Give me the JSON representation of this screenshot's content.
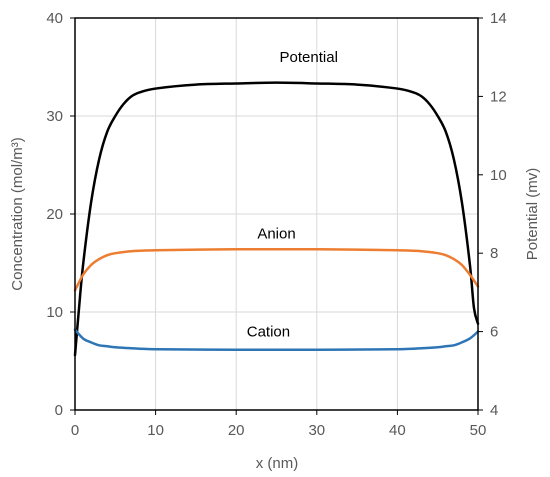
{
  "chart_data": {
    "type": "line",
    "x_axis": {
      "label": "x (nm)",
      "range": [
        0,
        50
      ],
      "ticks": [
        0,
        10,
        20,
        30,
        40,
        50
      ]
    },
    "y_axis_left": {
      "label": "Concentration (mol/m³)",
      "range": [
        0,
        40
      ],
      "ticks": [
        0,
        10,
        20,
        30,
        40
      ]
    },
    "y_axis_right": {
      "label": "Potential (mv)",
      "range": [
        4,
        14
      ],
      "ticks": [
        4,
        6,
        8,
        10,
        12,
        14
      ]
    },
    "grid": true,
    "legend": "none",
    "series": [
      {
        "name": "Potential",
        "axis": "right",
        "color": "#000000",
        "points": [
          [
            0,
            5.4
          ],
          [
            0.5,
            6.6
          ],
          [
            1,
            7.7
          ],
          [
            2,
            9.3
          ],
          [
            3,
            10.4
          ],
          [
            4,
            11.1
          ],
          [
            5,
            11.5
          ],
          [
            6,
            11.8
          ],
          [
            7,
            12.0
          ],
          [
            8,
            12.1
          ],
          [
            10,
            12.2
          ],
          [
            15,
            12.3
          ],
          [
            20,
            12.33
          ],
          [
            25,
            12.35
          ],
          [
            30,
            12.33
          ],
          [
            35,
            12.3
          ],
          [
            40,
            12.2
          ],
          [
            42,
            12.1
          ],
          [
            43,
            12.0
          ],
          [
            44,
            11.8
          ],
          [
            45,
            11.5
          ],
          [
            46,
            11.1
          ],
          [
            47,
            10.4
          ],
          [
            48,
            9.3
          ],
          [
            49,
            7.7
          ],
          [
            49.5,
            6.6
          ],
          [
            50,
            6.2
          ]
        ]
      },
      {
        "name": "Anion",
        "axis": "left",
        "color": "#ED7D31",
        "points": [
          [
            0,
            12.2
          ],
          [
            1,
            13.8
          ],
          [
            2,
            14.8
          ],
          [
            3,
            15.4
          ],
          [
            4,
            15.8
          ],
          [
            5,
            16.0
          ],
          [
            7,
            16.2
          ],
          [
            10,
            16.3
          ],
          [
            20,
            16.4
          ],
          [
            25,
            16.4
          ],
          [
            30,
            16.4
          ],
          [
            40,
            16.3
          ],
          [
            43,
            16.2
          ],
          [
            45,
            16.0
          ],
          [
            46,
            15.8
          ],
          [
            47,
            15.4
          ],
          [
            48,
            14.8
          ],
          [
            49,
            13.8
          ],
          [
            50,
            12.6
          ]
        ]
      },
      {
        "name": "Cation",
        "axis": "left",
        "color": "#2E75B6",
        "points": [
          [
            0,
            8.2
          ],
          [
            1,
            7.3
          ],
          [
            2,
            6.9
          ],
          [
            3,
            6.6
          ],
          [
            4,
            6.5
          ],
          [
            5,
            6.4
          ],
          [
            7,
            6.3
          ],
          [
            10,
            6.2
          ],
          [
            20,
            6.15
          ],
          [
            30,
            6.15
          ],
          [
            40,
            6.2
          ],
          [
            43,
            6.3
          ],
          [
            45,
            6.4
          ],
          [
            46,
            6.5
          ],
          [
            47,
            6.6
          ],
          [
            48,
            6.9
          ],
          [
            49,
            7.3
          ],
          [
            50,
            8.0
          ]
        ]
      }
    ],
    "annotations": [
      {
        "text": "Potential",
        "x": 29,
        "y": 35.5
      },
      {
        "text": "Anion",
        "x": 25,
        "y": 17.5
      },
      {
        "text": "Cation",
        "x": 24,
        "y": 7.5
      }
    ]
  }
}
